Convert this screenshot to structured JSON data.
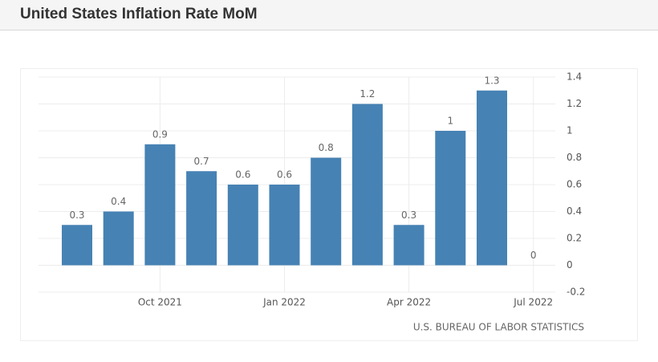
{
  "header": {
    "title": "United States Inflation Rate MoM"
  },
  "chart_data": {
    "type": "bar",
    "categories": [
      null,
      null,
      "Oct 2021",
      null,
      null,
      "Jan 2022",
      null,
      null,
      "Apr 2022",
      null,
      null,
      "Jul 2022"
    ],
    "values": [
      0.3,
      0.4,
      0.9,
      0.7,
      0.6,
      0.6,
      0.8,
      1.2,
      0.3,
      1,
      1.3,
      0
    ],
    "color": "#4682b4",
    "ylim": [
      -0.2,
      1.4
    ],
    "yticks": [
      -0.2,
      0,
      0.2,
      0.4,
      0.6,
      0.8,
      1,
      1.2,
      1.4
    ],
    "grid": true,
    "source": "U.S. BUREAU OF LABOR STATISTICS"
  }
}
